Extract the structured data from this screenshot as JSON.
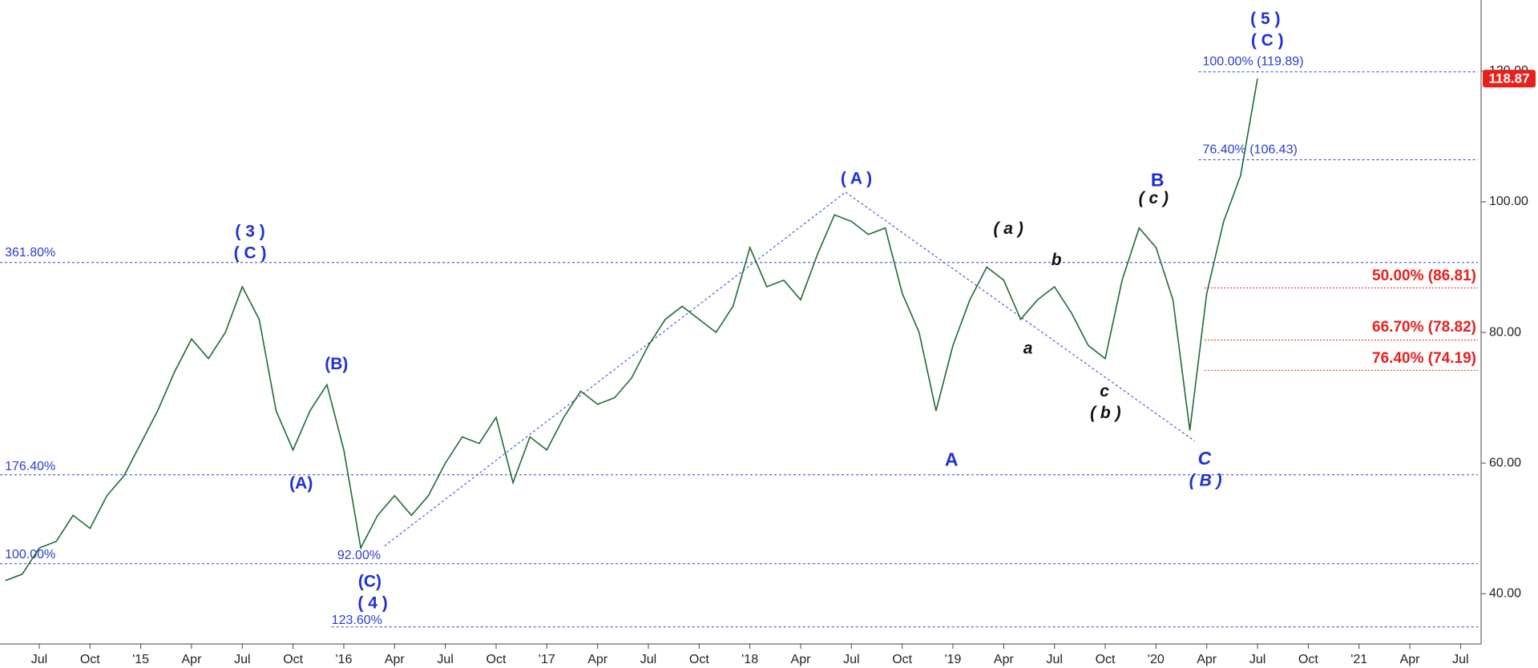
{
  "chart_data": {
    "type": "line",
    "categories": [
      null,
      null,
      "Jul",
      null,
      null,
      "Oct",
      null,
      null,
      "'15",
      null,
      null,
      "Apr",
      null,
      null,
      "Jul",
      null,
      null,
      "Oct",
      null,
      null,
      "'16",
      null,
      null,
      "Apr",
      null,
      null,
      "Jul",
      null,
      null,
      "Oct",
      null,
      null,
      "'17",
      null,
      null,
      "Apr",
      null,
      null,
      "Jul",
      null,
      null,
      "Oct",
      null,
      null,
      "'18",
      null,
      null,
      "Apr",
      null,
      null,
      "Jul",
      null,
      null,
      "Oct",
      null,
      null,
      "'19",
      null,
      null,
      "Apr",
      null,
      null,
      "Jul",
      null,
      null,
      "Oct",
      null,
      null,
      "'20",
      null,
      null,
      "Apr",
      null,
      null,
      "Jul",
      null,
      null,
      "Oct",
      null,
      null,
      "'21",
      null,
      null,
      "Apr",
      null,
      null,
      "Jul",
      null,
      null
    ],
    "series": [
      {
        "color": "#1d6b34",
        "values": [
          42,
          43,
          47,
          48,
          52,
          50,
          55,
          58,
          63,
          68,
          74,
          79,
          76,
          80,
          87,
          82,
          68,
          62,
          68,
          72,
          62,
          47,
          52,
          55,
          52,
          55,
          60,
          64,
          63,
          67,
          57,
          64,
          62,
          67,
          71,
          69,
          70,
          73,
          78,
          82,
          84,
          82,
          80,
          84,
          93,
          87,
          88,
          85,
          92,
          98,
          97,
          95,
          96,
          86,
          80,
          68,
          78,
          85,
          90,
          88,
          82,
          85,
          87,
          83,
          78,
          76,
          88,
          96,
          93,
          85,
          65,
          86,
          97,
          104,
          118.87,
          null,
          null,
          null,
          null,
          null,
          null,
          null,
          null,
          null,
          null,
          null,
          null,
          null,
          null
        ]
      }
    ],
    "ylim": [
      32.3,
      130.9
    ],
    "yticks": [
      {
        "value": 40,
        "label": "40.00"
      },
      {
        "value": 60,
        "label": "60.00"
      },
      {
        "value": 80,
        "label": "80.00"
      },
      {
        "value": 100,
        "label": "100.00"
      },
      {
        "value": 120,
        "label": "120.00"
      }
    ],
    "price_badge_color": "#e8201c",
    "levels": [
      {
        "label": "361.80%",
        "level": 90.7,
        "color": "#2a3bd6"
      },
      {
        "label": "176.40%",
        "level": 58.2,
        "color": "#2a3bd6"
      },
      {
        "label": "100.00%",
        "level": 44.6,
        "color": "#2a3bd6"
      },
      {
        "label": "123.60%",
        "level": 34.9,
        "color": "#2a3bd6"
      },
      {
        "label": "100.00% (119.89)",
        "level": 119.89,
        "color": "#2a3bd6"
      },
      {
        "label": "76.40% (106.43)",
        "level": 106.43,
        "color": "#2a3bd6"
      },
      {
        "label": "50.00% (86.81)",
        "level": 86.81,
        "color": "#e8201c"
      },
      {
        "label": "66.70% (78.82)",
        "level": 78.82,
        "color": "#e8201c"
      },
      {
        "label": "76.40% (74.19)",
        "level": 74.19,
        "color": "#e8201c"
      }
    ],
    "annotations": [
      {
        "text": "( 5 )",
        "color": "#1f2fd6",
        "style": "normal"
      },
      {
        "text": "( C )",
        "color": "#1f2fd6",
        "style": "normal"
      },
      {
        "text": "( 3 )",
        "color": "#1f2fd6",
        "style": "normal"
      },
      {
        "text": "( C )",
        "color": "#1f2fd6",
        "style": "normal"
      },
      {
        "text": "(B)",
        "color": "#1f2fd6",
        "style": "normal"
      },
      {
        "text": "(A)",
        "color": "#1f2fd6",
        "style": "normal"
      },
      {
        "text": "(C)",
        "color": "#1f2fd6",
        "style": "normal"
      },
      {
        "text": "( 4 )",
        "color": "#1f2fd6",
        "style": "normal"
      },
      {
        "text": "( A )",
        "color": "#1f2fd6",
        "style": "normal"
      },
      {
        "text": "( a )",
        "color": "#111111",
        "style": "italic"
      },
      {
        "text": "b",
        "color": "#111111",
        "style": "italic"
      },
      {
        "text": "a",
        "color": "#111111",
        "style": "italic"
      },
      {
        "text": "c",
        "color": "#111111",
        "style": "italic"
      },
      {
        "text": "( b )",
        "color": "#111111",
        "style": "italic"
      },
      {
        "text": "A",
        "color": "#1f2fd6",
        "style": "normal"
      },
      {
        "text": "B",
        "color": "#1f2fd6",
        "style": "normal"
      },
      {
        "text": "( c )",
        "color": "#111111",
        "style": "italic"
      },
      {
        "text": "C",
        "color": "#1f2fd6",
        "style": "italic"
      },
      {
        "text": "( B )",
        "color": "#1f2fd6",
        "style": "italic"
      },
      {
        "text": "92.00%",
        "color": "#2a3bd6",
        "style": "small"
      }
    ]
  }
}
